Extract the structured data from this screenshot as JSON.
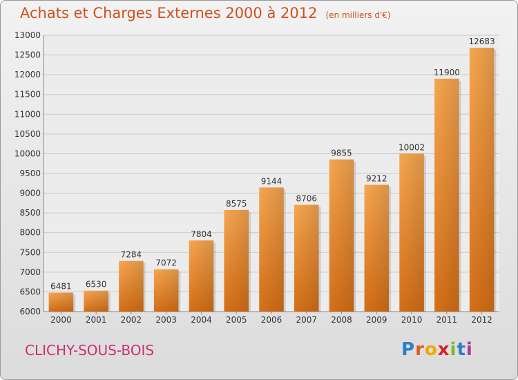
{
  "title": "Achats et Charges Externes 2000 à 2012",
  "subtitle": "(en milliers d'€)",
  "city": "CLICHY-SOUS-BOIS",
  "logo": "Proxiti",
  "colors": {
    "bar_light": "#f5a24e",
    "bar_dark": "#d9731a",
    "title": "#d0501e",
    "city": "#cc2e72"
  },
  "chart_data": {
    "type": "bar",
    "categories": [
      "2000",
      "2001",
      "2002",
      "2003",
      "2004",
      "2005",
      "2006",
      "2007",
      "2008",
      "2009",
      "2010",
      "2011",
      "2012"
    ],
    "values": [
      6481,
      6530,
      7284,
      7072,
      7804,
      8575,
      9144,
      8706,
      9855,
      9212,
      10002,
      11900,
      12683
    ],
    "title": "Achats et Charges Externes 2000 à 2012",
    "subtitle": "(en milliers d'€)",
    "ylim": [
      6000,
      13000
    ],
    "yticks": [
      6000,
      6500,
      7000,
      7500,
      8000,
      8500,
      9000,
      9500,
      10000,
      10500,
      11000,
      11500,
      12000,
      12500,
      13000
    ],
    "grid": true,
    "legend": "none"
  }
}
